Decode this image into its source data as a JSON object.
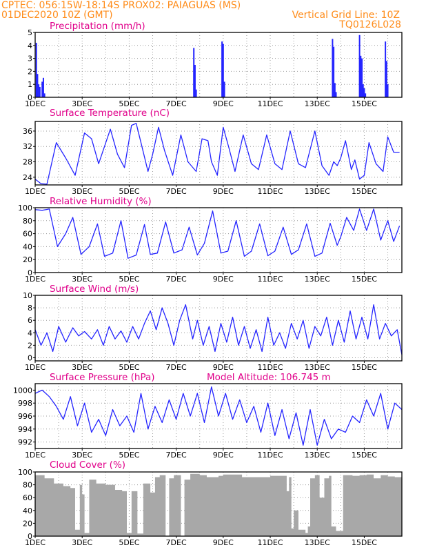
{
  "header": {
    "line1": "CPTEC:   056:15W-18:14S   PROX02: PAIAGUAS (MS)",
    "line2_left": "01DEC2020 10Z (GMT)",
    "line2_right": "Vertical Grid Line: 10Z",
    "line3_right": "TQ0126L028"
  },
  "x_tick_labels": [
    "1DEC",
    "3DEC",
    "5DEC",
    "7DEC",
    "9DEC",
    "11DEC",
    "13DEC",
    "15DEC"
  ],
  "colors": {
    "header": "#ff8c1a",
    "title": "#e0008a",
    "series": "#2424ff",
    "cloud": "#a8a8a8"
  },
  "chart_data": [
    {
      "type": "bar",
      "title": "Precipitation (mm/h)",
      "ylim": [
        0,
        5
      ],
      "yticks": [
        0,
        1,
        2,
        3,
        4,
        5
      ],
      "x": [
        0.05,
        0.1,
        0.15,
        0.2,
        0.3,
        0.35,
        0.4,
        6.75,
        6.8,
        6.85,
        7.95,
        8.0,
        8.05,
        12.65,
        12.7,
        12.75,
        12.8,
        13.8,
        13.85,
        13.9,
        13.95,
        14.0,
        14.05,
        14.9,
        14.95,
        15.0
      ],
      "values": [
        4.2,
        1.8,
        1.0,
        0.8,
        1.2,
        1.5,
        0.3,
        3.8,
        2.5,
        0.6,
        4.3,
        4.1,
        1.2,
        4.5,
        3.9,
        1.1,
        0.4,
        4.8,
        3.2,
        3.0,
        1.0,
        0.7,
        0.3,
        4.3,
        2.8,
        1.0
      ]
    },
    {
      "type": "line",
      "title": "Surface Temperature (nC)",
      "ylim": [
        22,
        38.5
      ],
      "yticks": [
        24,
        28,
        32,
        36
      ],
      "x": [
        0,
        0.25,
        0.5,
        0.9,
        1.3,
        1.7,
        2.1,
        2.4,
        2.7,
        3.2,
        3.5,
        3.8,
        4.1,
        4.3,
        4.5,
        4.8,
        5.0,
        5.25,
        5.5,
        5.85,
        6.2,
        6.5,
        6.85,
        7.1,
        7.35,
        7.5,
        7.75,
        8.0,
        8.25,
        8.5,
        8.85,
        9.2,
        9.5,
        9.85,
        10.2,
        10.5,
        10.85,
        11.2,
        11.5,
        11.9,
        12.2,
        12.5,
        12.7,
        12.85,
        13.0,
        13.2,
        13.45,
        13.6,
        13.8,
        14.0,
        14.2,
        14.5,
        14.8,
        15.0,
        15.25,
        15.5
      ],
      "y": [
        23.5,
        22.3,
        22.2,
        33.0,
        29.0,
        24.5,
        35.5,
        34.0,
        27.5,
        36.5,
        30.0,
        26.5,
        37.5,
        38.0,
        33.0,
        25.5,
        30.0,
        37.0,
        31.0,
        24.5,
        35.0,
        28.0,
        25.5,
        34.0,
        33.5,
        28.0,
        24.5,
        37.0,
        31.5,
        25.5,
        35.0,
        27.5,
        26.0,
        35.0,
        27.5,
        26.0,
        36.0,
        27.5,
        26.5,
        36.0,
        27.0,
        24.5,
        28.0,
        27.0,
        29.0,
        33.5,
        26.0,
        28.5,
        23.5,
        24.5,
        33.0,
        27.5,
        25.5,
        34.5,
        30.5,
        30.5
      ]
    },
    {
      "type": "line",
      "title": "Relative Humidity (%)",
      "ylim": [
        0,
        100
      ],
      "yticks": [
        0,
        20,
        40,
        60,
        80,
        100
      ],
      "x": [
        0,
        0.3,
        0.6,
        0.95,
        1.3,
        1.6,
        1.95,
        2.3,
        2.65,
        2.95,
        3.3,
        3.65,
        3.95,
        4.3,
        4.65,
        4.9,
        5.2,
        5.55,
        5.9,
        6.25,
        6.55,
        6.9,
        7.2,
        7.55,
        7.9,
        8.2,
        8.55,
        8.9,
        9.2,
        9.55,
        9.9,
        10.2,
        10.55,
        10.9,
        11.2,
        11.55,
        11.9,
        12.2,
        12.55,
        12.85,
        13.0,
        13.25,
        13.55,
        13.8,
        14.1,
        14.4,
        14.7,
        15.0,
        15.25,
        15.5
      ],
      "y": [
        97,
        96,
        98,
        40,
        60,
        85,
        28,
        40,
        75,
        25,
        30,
        80,
        22,
        27,
        74,
        28,
        30,
        78,
        30,
        35,
        70,
        27,
        45,
        95,
        30,
        33,
        80,
        25,
        33,
        75,
        26,
        33,
        70,
        28,
        35,
        75,
        25,
        30,
        76,
        42,
        55,
        85,
        65,
        98,
        65,
        98,
        50,
        80,
        48,
        72
      ]
    },
    {
      "type": "line",
      "title": "Surface Wind (m/s)",
      "ylim": [
        -0.5,
        10
      ],
      "yticks": [
        0,
        2,
        4,
        6,
        8,
        10
      ],
      "x": [
        0,
        0.25,
        0.5,
        0.75,
        1.0,
        1.3,
        1.6,
        1.85,
        2.1,
        2.4,
        2.65,
        2.9,
        3.15,
        3.4,
        3.65,
        3.9,
        4.15,
        4.4,
        4.65,
        4.9,
        5.15,
        5.4,
        5.65,
        5.9,
        6.15,
        6.4,
        6.7,
        6.9,
        7.15,
        7.4,
        7.65,
        7.9,
        8.15,
        8.4,
        8.65,
        8.9,
        9.15,
        9.4,
        9.65,
        9.9,
        10.15,
        10.4,
        10.65,
        10.9,
        11.15,
        11.4,
        11.65,
        11.9,
        12.15,
        12.4,
        12.65,
        12.9,
        13.15,
        13.4,
        13.65,
        13.9,
        14.15,
        14.4,
        14.65,
        14.9,
        15.15,
        15.4,
        15.6
      ],
      "y": [
        4.5,
        2.0,
        4.0,
        1.0,
        5.0,
        2.5,
        4.8,
        3.5,
        4.2,
        3.0,
        4.5,
        2.0,
        5.0,
        3.0,
        4.3,
        2.5,
        5.0,
        3.0,
        5.5,
        7.5,
        4.5,
        8.0,
        5.5,
        2.0,
        6.0,
        8.5,
        3.0,
        6.0,
        2.0,
        5.0,
        1.0,
        5.5,
        2.5,
        6.5,
        2.0,
        5.0,
        1.5,
        4.5,
        1.0,
        6.5,
        2.0,
        4.0,
        1.5,
        5.5,
        3.0,
        6.0,
        1.5,
        5.0,
        3.5,
        6.5,
        2.0,
        6.0,
        2.5,
        7.5,
        3.0,
        6.5,
        3.0,
        8.5,
        3.0,
        5.5,
        3.5,
        4.5,
        0.5
      ]
    },
    {
      "type": "line",
      "title": "Surface Pressure (hPa)",
      "annotation": "Model Altitude: 106.745  m",
      "ylim": [
        991,
        1001
      ],
      "yticks": [
        992,
        994,
        996,
        998,
        1000
      ],
      "x": [
        0,
        0.3,
        0.6,
        0.9,
        1.2,
        1.5,
        1.8,
        2.1,
        2.4,
        2.7,
        3.0,
        3.3,
        3.6,
        3.9,
        4.2,
        4.5,
        4.8,
        5.1,
        5.4,
        5.7,
        6.0,
        6.3,
        6.6,
        6.9,
        7.2,
        7.5,
        7.8,
        8.1,
        8.4,
        8.7,
        9.0,
        9.3,
        9.6,
        9.9,
        10.2,
        10.5,
        10.8,
        11.1,
        11.4,
        11.7,
        12.0,
        12.3,
        12.6,
        12.9,
        13.2,
        13.5,
        13.8,
        14.1,
        14.4,
        14.7,
        15.0,
        15.3,
        15.6
      ],
      "y": [
        999.5,
        1000.0,
        999.0,
        997.5,
        995.5,
        999.0,
        994.5,
        998.0,
        993.5,
        995.5,
        993.0,
        997.0,
        994.5,
        996.0,
        993.5,
        999.5,
        994.0,
        997.5,
        995.0,
        998.5,
        995.5,
        999.5,
        996.0,
        999.5,
        995.0,
        1000.5,
        996.0,
        999.5,
        995.5,
        998.5,
        995.0,
        997.5,
        993.5,
        998.0,
        993.0,
        997.0,
        992.5,
        996.5,
        991.5,
        997.0,
        991.5,
        995.5,
        992.5,
        994.0,
        993.5,
        996.0,
        995.0,
        998.5,
        996.0,
        999.5,
        994.0,
        998.0,
        997.0
      ]
    },
    {
      "type": "area",
      "title": "Cloud Cover (%)",
      "ylim": [
        0,
        100
      ],
      "yticks": [
        0,
        20,
        40,
        60,
        80,
        100
      ],
      "x": [
        0,
        0.4,
        0.8,
        1.2,
        1.5,
        1.7,
        1.9,
        2.0,
        2.1,
        2.3,
        2.6,
        3.0,
        3.4,
        3.7,
        3.9,
        4.1,
        4.2,
        4.35,
        4.6,
        4.9,
        5.1,
        5.3,
        5.55,
        5.7,
        5.9,
        6.1,
        6.2,
        6.35,
        6.6,
        7.0,
        7.3,
        7.6,
        7.8,
        8.0,
        8.4,
        8.8,
        9.2,
        9.6,
        10.0,
        10.4,
        10.7,
        10.8,
        10.9,
        11.0,
        11.2,
        11.5,
        11.6,
        11.7,
        11.9,
        12.1,
        12.3,
        12.5,
        12.6,
        12.8,
        13.1,
        13.5,
        13.8,
        14.1,
        14.4,
        14.7,
        15.0,
        15.3,
        15.6
      ],
      "y": [
        95,
        90,
        82,
        78,
        75,
        10,
        80,
        65,
        5,
        88,
        82,
        80,
        72,
        70,
        5,
        70,
        70,
        4,
        82,
        68,
        92,
        95,
        0,
        90,
        95,
        95,
        0,
        88,
        97,
        95,
        92,
        92,
        94,
        96,
        96,
        92,
        92,
        92,
        94,
        94,
        70,
        92,
        12,
        40,
        10,
        5,
        15,
        90,
        95,
        60,
        90,
        94,
        15,
        8,
        95,
        94,
        95,
        96,
        90,
        95,
        93,
        92,
        95
      ]
    }
  ]
}
